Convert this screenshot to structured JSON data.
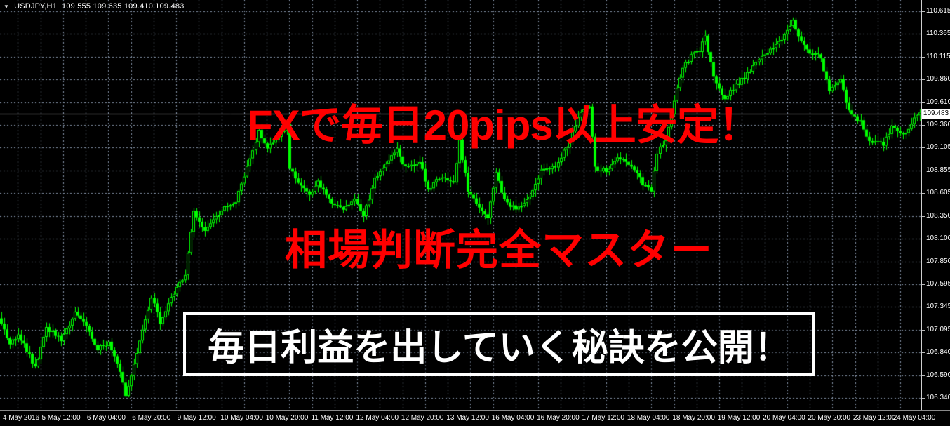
{
  "header": {
    "symbol": "USDJPY,H1",
    "ohlc": "109.555 109.635 109.410 109.483"
  },
  "overlays": {
    "line1": "FXで毎日20pips以上安定！",
    "line2": "相場判断完全マスター",
    "boxed": "毎日利益を出していく秘訣を公開！"
  },
  "price_axis": {
    "labels": [
      "110.615",
      "110.365",
      "110.115",
      "109.860",
      "109.610",
      "109.360",
      "109.105",
      "108.855",
      "108.605",
      "108.350",
      "108.100",
      "107.850",
      "107.595",
      "107.345",
      "107.095",
      "106.840",
      "106.590",
      "106.340"
    ],
    "current_price": "109.483"
  },
  "time_axis": {
    "labels": [
      "4 May 2016",
      "5 May 12:00",
      "6 May 04:00",
      "6 May 20:00",
      "9 May 12:00",
      "10 May 04:00",
      "10 May 20:00",
      "11 May 12:00",
      "12 May 04:00",
      "12 May 20:00",
      "13 May 12:00",
      "16 May 04:00",
      "16 May 20:00",
      "17 May 12:00",
      "18 May 04:00",
      "18 May 20:00",
      "19 May 12:00",
      "20 May 04:00",
      "20 May 20:00",
      "23 May 12:00",
      "24 May 04:00"
    ]
  },
  "colors": {
    "background": "#000000",
    "candle": "#00FF00",
    "grid": "#8795aa",
    "current_price_line": "#9a9a9a",
    "overlay_red": "#FF0000",
    "overlay_white": "#FFFFFF",
    "price_tag_bg": "#FFFFFF",
    "axis_text": "#FFFFFF"
  },
  "chart_data": {
    "type": "candlestick",
    "symbol": "USDJPY",
    "timeframe": "H1",
    "title_ohlc": {
      "open": 109.555,
      "high": 109.635,
      "low": 109.41,
      "close": 109.483
    },
    "current_price": 109.483,
    "price_range": [
      106.34,
      110.615
    ],
    "y_axis_ticks": [
      110.615,
      110.365,
      110.115,
      109.86,
      109.61,
      109.36,
      109.105,
      108.855,
      108.605,
      108.35,
      108.1,
      107.85,
      107.595,
      107.345,
      107.095,
      106.84,
      106.59,
      106.34
    ],
    "x_axis_labels": [
      "4 May 2016",
      "5 May 12:00",
      "6 May 04:00",
      "6 May 20:00",
      "9 May 12:00",
      "10 May 04:00",
      "10 May 20:00",
      "11 May 12:00",
      "12 May 04:00",
      "12 May 20:00",
      "13 May 12:00",
      "16 May 04:00",
      "16 May 20:00",
      "17 May 12:00",
      "18 May 04:00",
      "18 May 20:00",
      "19 May 12:00",
      "20 May 04:00",
      "20 May 20:00",
      "23 May 12:00",
      "24 May 04:00"
    ],
    "date_range_visible": "4 May 2016 - 24 May 2016",
    "bars_total": 326,
    "grid": "dashed",
    "legend": "none",
    "waypoints_note": "approximate close-price path read from chart, as [bar_index, price]",
    "waypoints": [
      [
        0,
        107.18
      ],
      [
        3,
        106.92
      ],
      [
        6,
        107.05
      ],
      [
        12,
        106.68
      ],
      [
        16,
        107.12
      ],
      [
        21,
        106.98
      ],
      [
        26,
        107.28
      ],
      [
        30,
        107.12
      ],
      [
        34,
        106.88
      ],
      [
        38,
        106.95
      ],
      [
        42,
        106.62
      ],
      [
        44,
        106.38
      ],
      [
        46,
        106.58
      ],
      [
        50,
        107.08
      ],
      [
        53,
        107.45
      ],
      [
        56,
        107.18
      ],
      [
        60,
        107.45
      ],
      [
        65,
        107.72
      ],
      [
        68,
        108.42
      ],
      [
        72,
        108.18
      ],
      [
        75,
        108.32
      ],
      [
        79,
        108.45
      ],
      [
        83,
        108.52
      ],
      [
        87,
        108.88
      ],
      [
        91,
        109.28
      ],
      [
        94,
        109.12
      ],
      [
        98,
        109.25
      ],
      [
        101,
        109.35
      ],
      [
        102,
        108.88
      ],
      [
        105,
        108.72
      ],
      [
        109,
        108.6
      ],
      [
        112,
        108.72
      ],
      [
        116,
        108.52
      ],
      [
        121,
        108.42
      ],
      [
        125,
        108.52
      ],
      [
        128,
        108.35
      ],
      [
        132,
        108.75
      ],
      [
        136,
        108.95
      ],
      [
        140,
        109.08
      ],
      [
        143,
        108.88
      ],
      [
        148,
        108.96
      ],
      [
        151,
        108.62
      ],
      [
        155,
        108.78
      ],
      [
        160,
        108.7
      ],
      [
        162,
        109.18
      ],
      [
        165,
        108.62
      ],
      [
        168,
        108.5
      ],
      [
        172,
        108.34
      ],
      [
        175,
        108.85
      ],
      [
        178,
        108.52
      ],
      [
        182,
        108.42
      ],
      [
        187,
        108.55
      ],
      [
        191,
        108.85
      ],
      [
        196,
        108.9
      ],
      [
        200,
        109.12
      ],
      [
        204,
        109.45
      ],
      [
        208,
        109.56
      ],
      [
        210,
        108.88
      ],
      [
        214,
        108.86
      ],
      [
        218,
        109.0
      ],
      [
        221,
        108.95
      ],
      [
        224,
        108.88
      ],
      [
        227,
        108.7
      ],
      [
        230,
        108.62
      ],
      [
        232,
        109.05
      ],
      [
        235,
        109.2
      ],
      [
        238,
        109.62
      ],
      [
        241,
        110.0
      ],
      [
        244,
        110.12
      ],
      [
        247,
        110.18
      ],
      [
        249,
        110.33
      ],
      [
        252,
        109.9
      ],
      [
        256,
        109.65
      ],
      [
        260,
        109.8
      ],
      [
        263,
        109.88
      ],
      [
        267,
        110.05
      ],
      [
        271,
        110.15
      ],
      [
        276,
        110.32
      ],
      [
        280,
        110.5
      ],
      [
        283,
        110.28
      ],
      [
        286,
        110.16
      ],
      [
        290,
        110.1
      ],
      [
        293,
        109.72
      ],
      [
        297,
        109.85
      ],
      [
        300,
        109.5
      ],
      [
        304,
        109.4
      ],
      [
        307,
        109.18
      ],
      [
        312,
        109.14
      ],
      [
        315,
        109.33
      ],
      [
        319,
        109.24
      ],
      [
        323,
        109.42
      ],
      [
        325,
        109.48
      ]
    ],
    "annotations": [
      "FXで毎日20pips以上安定！",
      "相場判断完全マスター",
      "毎日利益を出していく秘訣を公開！"
    ]
  }
}
